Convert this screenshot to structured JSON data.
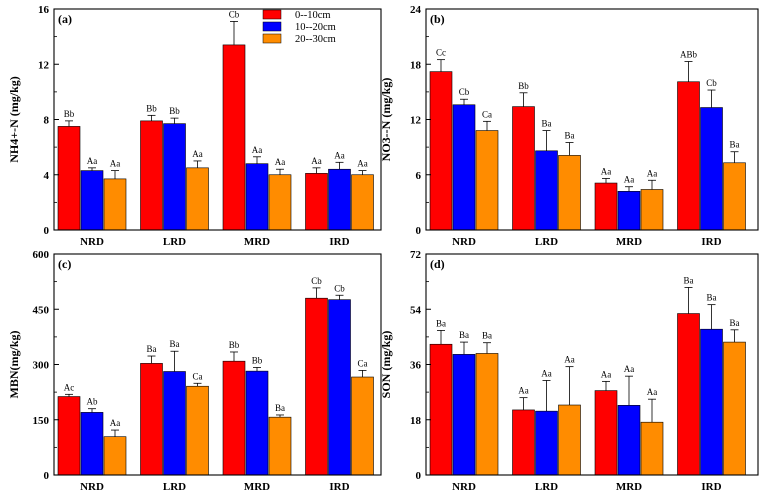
{
  "legend": {
    "series": [
      {
        "name": "0--10cm",
        "color": "#ff0000"
      },
      {
        "name": "10--20cm",
        "color": "#0000ff"
      },
      {
        "name": "20--30cm",
        "color": "#ff8c00"
      }
    ]
  },
  "chart_data": [
    {
      "type": "bar",
      "panel": "(a)",
      "ylabel": "NH4+-N (mg/kg)",
      "ylim": [
        0,
        16
      ],
      "yticks": [
        0,
        4,
        8,
        12,
        16
      ],
      "categories": [
        "NRD",
        "LRD",
        "MRD",
        "IRD"
      ],
      "series": [
        {
          "name": "0--10cm",
          "values": [
            7.5,
            7.9,
            13.4,
            4.1
          ],
          "errors": [
            0.4,
            0.4,
            1.7,
            0.4
          ],
          "labels": [
            "Bb",
            "Bb",
            "Cb",
            "Aa"
          ]
        },
        {
          "name": "10--20cm",
          "values": [
            4.3,
            7.7,
            4.8,
            4.4
          ],
          "errors": [
            0.2,
            0.4,
            0.5,
            0.5
          ],
          "labels": [
            "Aa",
            "Bb",
            "Aa",
            "Aa"
          ]
        },
        {
          "name": "20--30cm",
          "values": [
            3.7,
            4.5,
            4.0,
            4.0
          ],
          "errors": [
            0.6,
            0.5,
            0.4,
            0.3
          ],
          "labels": [
            "Aa",
            "Aa",
            "Aa",
            "Aa"
          ]
        }
      ]
    },
    {
      "type": "bar",
      "panel": "(b)",
      "ylabel": "NO3--N (mg/kg)",
      "ylim": [
        0,
        24
      ],
      "yticks": [
        0,
        6,
        12,
        18,
        24
      ],
      "categories": [
        "NRD",
        "LRD",
        "MRD",
        "IRD"
      ],
      "series": [
        {
          "name": "0--10cm",
          "values": [
            17.2,
            13.4,
            5.1,
            16.1
          ],
          "errors": [
            1.3,
            1.5,
            0.5,
            2.2
          ],
          "labels": [
            "Cc",
            "Bb",
            "Aa",
            "ABb"
          ]
        },
        {
          "name": "10--20cm",
          "values": [
            13.6,
            8.6,
            4.2,
            13.3
          ],
          "errors": [
            0.6,
            2.2,
            0.5,
            1.9
          ],
          "labels": [
            "Cb",
            "Ba",
            "Aa",
            "Cb"
          ]
        },
        {
          "name": "20--30cm",
          "values": [
            10.8,
            8.1,
            4.4,
            7.3
          ],
          "errors": [
            1.0,
            1.4,
            1.0,
            1.2
          ],
          "labels": [
            "Ca",
            "Ba",
            "Aa",
            "Ba"
          ]
        }
      ]
    },
    {
      "type": "bar",
      "panel": "(c)",
      "ylabel": "MBN(mg/kg)",
      "ylim": [
        0,
        600
      ],
      "yticks": [
        0,
        150,
        300,
        450,
        600
      ],
      "categories": [
        "NRD",
        "LRD",
        "MRD",
        "IRD"
      ],
      "series": [
        {
          "name": "0--10cm",
          "values": [
            213,
            303,
            309,
            480
          ],
          "errors": [
            6,
            20,
            25,
            28
          ],
          "labels": [
            "Ac",
            "Ba",
            "Bb",
            "Cb"
          ]
        },
        {
          "name": "10--20cm",
          "values": [
            170,
            281,
            282,
            476
          ],
          "errors": [
            10,
            55,
            10,
            12
          ],
          "labels": [
            "Ab",
            "Ba",
            "Bb",
            "Cb"
          ]
        },
        {
          "name": "20--30cm",
          "values": [
            104,
            241,
            157,
            266
          ],
          "errors": [
            18,
            8,
            6,
            18
          ],
          "labels": [
            "Aa",
            "Ca",
            "Ba",
            "Ca"
          ]
        }
      ]
    },
    {
      "type": "bar",
      "panel": "(d)",
      "ylabel": "SON (mg/kg)",
      "ylim": [
        0,
        72
      ],
      "yticks": [
        0,
        18,
        36,
        54,
        72
      ],
      "categories": [
        "NRD",
        "LRD",
        "MRD",
        "IRD"
      ],
      "series": [
        {
          "name": "0--10cm",
          "values": [
            42.6,
            21.2,
            27.5,
            52.6
          ],
          "errors": [
            4.5,
            4.0,
            3.0,
            8.5
          ],
          "labels": [
            "Ba",
            "Aa",
            "Aa",
            "Ba"
          ]
        },
        {
          "name": "10--20cm",
          "values": [
            39.3,
            20.8,
            22.7,
            47.5
          ],
          "errors": [
            4.0,
            10.0,
            9.5,
            8.0
          ],
          "labels": [
            "Ba",
            "Aa",
            "Aa",
            "Ba"
          ]
        },
        {
          "name": "20--30cm",
          "values": [
            39.6,
            22.8,
            17.2,
            43.3
          ],
          "errors": [
            3.5,
            12.5,
            7.5,
            4.0
          ],
          "labels": [
            "Ba",
            "Aa",
            "Aa",
            "Ba"
          ]
        }
      ]
    }
  ]
}
